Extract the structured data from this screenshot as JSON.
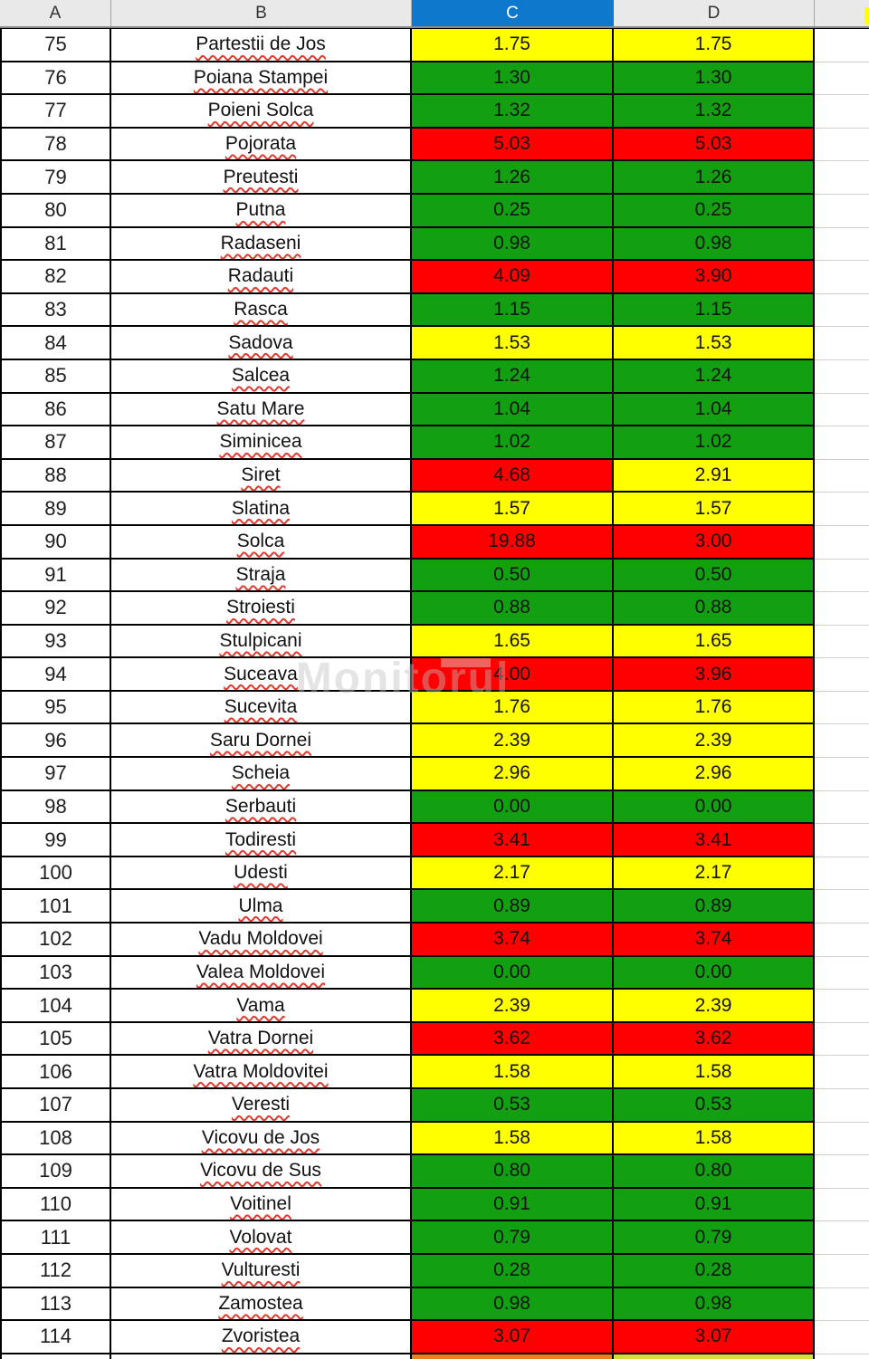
{
  "sheet": {
    "columns": [
      "A",
      "B",
      "C",
      "D"
    ],
    "selected_column": "C",
    "rows": [
      {
        "n": "75",
        "name": "Partestii de Jos",
        "c": "1.75",
        "d": "1.75",
        "c_color": "yellow",
        "d_color": "yellow"
      },
      {
        "n": "76",
        "name": "Poiana Stampei",
        "c": "1.30",
        "d": "1.30",
        "c_color": "green",
        "d_color": "green"
      },
      {
        "n": "77",
        "name": "Poieni Solca",
        "c": "1.32",
        "d": "1.32",
        "c_color": "green",
        "d_color": "green"
      },
      {
        "n": "78",
        "name": "Pojorata",
        "c": "5.03",
        "d": "5.03",
        "c_color": "red",
        "d_color": "red"
      },
      {
        "n": "79",
        "name": "Preutesti",
        "c": "1.26",
        "d": "1.26",
        "c_color": "green",
        "d_color": "green"
      },
      {
        "n": "80",
        "name": "Putna",
        "c": "0.25",
        "d": "0.25",
        "c_color": "green",
        "d_color": "green"
      },
      {
        "n": "81",
        "name": "Radaseni",
        "c": "0.98",
        "d": "0.98",
        "c_color": "green",
        "d_color": "green"
      },
      {
        "n": "82",
        "name": "Radauti",
        "c": "4.09",
        "d": "3.90",
        "c_color": "red",
        "d_color": "red"
      },
      {
        "n": "83",
        "name": "Rasca",
        "c": "1.15",
        "d": "1.15",
        "c_color": "green",
        "d_color": "green"
      },
      {
        "n": "84",
        "name": "Sadova",
        "c": "1.53",
        "d": "1.53",
        "c_color": "yellow",
        "d_color": "yellow"
      },
      {
        "n": "85",
        "name": "Salcea",
        "c": "1.24",
        "d": "1.24",
        "c_color": "green",
        "d_color": "green"
      },
      {
        "n": "86",
        "name": "Satu Mare",
        "c": "1.04",
        "d": "1.04",
        "c_color": "green",
        "d_color": "green"
      },
      {
        "n": "87",
        "name": "Siminicea",
        "c": "1.02",
        "d": "1.02",
        "c_color": "green",
        "d_color": "green"
      },
      {
        "n": "88",
        "name": "Siret",
        "c": "4.68",
        "d": "2.91",
        "c_color": "red",
        "d_color": "yellow"
      },
      {
        "n": "89",
        "name": "Slatina",
        "c": "1.57",
        "d": "1.57",
        "c_color": "yellow",
        "d_color": "yellow"
      },
      {
        "n": "90",
        "name": "Solca",
        "c": "19.88",
        "d": "3.00",
        "c_color": "red",
        "d_color": "red"
      },
      {
        "n": "91",
        "name": "Straja",
        "c": "0.50",
        "d": "0.50",
        "c_color": "green",
        "d_color": "green"
      },
      {
        "n": "92",
        "name": "Stroiesti",
        "c": "0.88",
        "d": "0.88",
        "c_color": "green",
        "d_color": "green"
      },
      {
        "n": "93",
        "name": "Stulpicani",
        "c": "1.65",
        "d": "1.65",
        "c_color": "yellow",
        "d_color": "yellow"
      },
      {
        "n": "94",
        "name": "Suceava",
        "c": "4.00",
        "d": "3.96",
        "c_color": "red",
        "d_color": "red"
      },
      {
        "n": "95",
        "name": "Sucevita",
        "c": "1.76",
        "d": "1.76",
        "c_color": "yellow",
        "d_color": "yellow"
      },
      {
        "n": "96",
        "name": "Saru Dornei",
        "c": "2.39",
        "d": "2.39",
        "c_color": "yellow",
        "d_color": "yellow"
      },
      {
        "n": "97",
        "name": "Scheia",
        "c": "2.96",
        "d": "2.96",
        "c_color": "yellow",
        "d_color": "yellow"
      },
      {
        "n": "98",
        "name": "Serbauti",
        "c": "0.00",
        "d": "0.00",
        "c_color": "green",
        "d_color": "green"
      },
      {
        "n": "99",
        "name": "Todiresti",
        "c": "3.41",
        "d": "3.41",
        "c_color": "red",
        "d_color": "red"
      },
      {
        "n": "100",
        "name": "Udesti",
        "c": "2.17",
        "d": "2.17",
        "c_color": "yellow",
        "d_color": "yellow"
      },
      {
        "n": "101",
        "name": "Ulma",
        "c": "0.89",
        "d": "0.89",
        "c_color": "green",
        "d_color": "green"
      },
      {
        "n": "102",
        "name": "Vadu Moldovei",
        "c": "3.74",
        "d": "3.74",
        "c_color": "red",
        "d_color": "red"
      },
      {
        "n": "103",
        "name": "Valea Moldovei",
        "c": "0.00",
        "d": "0.00",
        "c_color": "green",
        "d_color": "green"
      },
      {
        "n": "104",
        "name": "Vama",
        "c": "2.39",
        "d": "2.39",
        "c_color": "yellow",
        "d_color": "yellow"
      },
      {
        "n": "105",
        "name": "Vatra Dornei",
        "c": "3.62",
        "d": "3.62",
        "c_color": "red",
        "d_color": "red"
      },
      {
        "n": "106",
        "name": "Vatra Moldovitei",
        "c": "1.58",
        "d": "1.58",
        "c_color": "yellow",
        "d_color": "yellow"
      },
      {
        "n": "107",
        "name": "Veresti",
        "c": "0.53",
        "d": "0.53",
        "c_color": "green",
        "d_color": "green"
      },
      {
        "n": "108",
        "name": "Vicovu de Jos",
        "c": "1.58",
        "d": "1.58",
        "c_color": "yellow",
        "d_color": "yellow"
      },
      {
        "n": "109",
        "name": "Vicovu de Sus",
        "c": "0.80",
        "d": "0.80",
        "c_color": "green",
        "d_color": "green"
      },
      {
        "n": "110",
        "name": "Voitinel",
        "c": "0.91",
        "d": "0.91",
        "c_color": "green",
        "d_color": "green"
      },
      {
        "n": "111",
        "name": "Volovat",
        "c": "0.79",
        "d": "0.79",
        "c_color": "green",
        "d_color": "green"
      },
      {
        "n": "112",
        "name": "Vulturesti",
        "c": "0.28",
        "d": "0.28",
        "c_color": "green",
        "d_color": "green"
      },
      {
        "n": "113",
        "name": "Zamostea",
        "c": "0.98",
        "d": "0.98",
        "c_color": "green",
        "d_color": "green"
      },
      {
        "n": "114",
        "name": "Zvoristea",
        "c": "3.07",
        "d": "3.07",
        "c_color": "red",
        "d_color": "red"
      }
    ],
    "partial_row": {
      "c_color": "orange",
      "d_color": "lime"
    }
  },
  "colors": {
    "green": "#12a012",
    "yellow": "#ffff00",
    "red": "#ff0000",
    "orange": "#e8821e",
    "lime": "#d6df39",
    "selected_header": "#0e78cc"
  },
  "watermark": {
    "text": "Monitorul"
  }
}
